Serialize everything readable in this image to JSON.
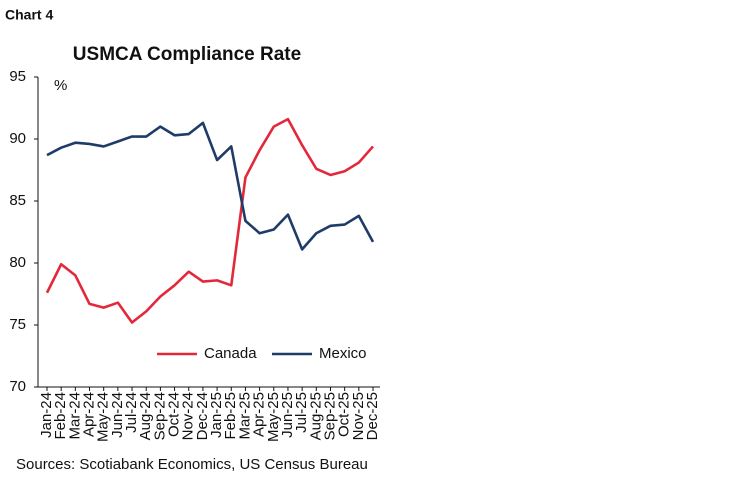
{
  "chart_data": {
    "type": "line",
    "chart_label": "Chart 4",
    "title": "USMCA Compliance Rate",
    "y_label": "%",
    "source": "Sources: Scotiabank Economics, US Census Bureau",
    "categories": [
      "Jan-24",
      "Feb-24",
      "Mar-24",
      "Apr-24",
      "May-24",
      "Jun-24",
      "Jul-24",
      "Aug-24",
      "Sep-24",
      "Oct-24",
      "Nov-24",
      "Dec-24",
      "Jan-25",
      "Feb-25",
      "Mar-25",
      "Apr-25",
      "May-25",
      "Jun-25",
      "Jul-25",
      "Aug-25",
      "Sep-25",
      "Oct-25",
      "Nov-25",
      "Dec-25"
    ],
    "series": [
      {
        "name": "Canada",
        "color": "#e4283b",
        "values": [
          77.6,
          79.9,
          79.0,
          76.7,
          76.4,
          76.8,
          75.2,
          76.1,
          77.3,
          78.2,
          79.3,
          78.5,
          78.6,
          78.2,
          86.9,
          89.1,
          91.0,
          91.6,
          89.5,
          87.6,
          87.1,
          87.4,
          88.1,
          89.4
        ]
      },
      {
        "name": "Mexico",
        "color": "#1f3c69",
        "values": [
          88.7,
          89.3,
          89.7,
          89.6,
          89.4,
          89.8,
          90.2,
          90.2,
          91.0,
          90.3,
          90.4,
          91.3,
          88.3,
          89.4,
          83.4,
          82.4,
          82.7,
          83.9,
          81.1,
          82.4,
          83.0,
          83.1,
          83.8,
          81.7
        ]
      }
    ],
    "ylim": [
      70,
      95
    ],
    "yticks": [
      70,
      75,
      80,
      85,
      90,
      95
    ],
    "grid": false,
    "legend": "bottom"
  }
}
